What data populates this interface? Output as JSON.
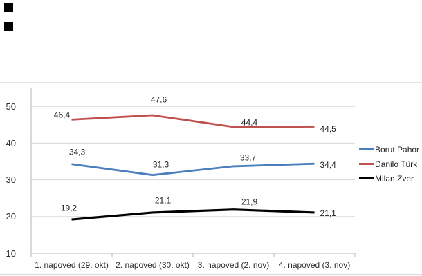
{
  "artifacts": {
    "broken_image_placeholder_count": 2
  },
  "chart_data": {
    "type": "line",
    "title": "",
    "xlabel": "",
    "ylabel": "",
    "categories": [
      "1. napoved (29. okt)",
      "2. napoved (30. okt)",
      "3. napoved (2. nov)",
      "4. napoved (3. nov)"
    ],
    "series": [
      {
        "name": "Borut Pahor",
        "color": "#4a7ebd",
        "values": [
          34.3,
          31.3,
          33.7,
          34.4
        ],
        "labels": [
          "34,3",
          "31,3",
          "33,7",
          "34,4"
        ]
      },
      {
        "name": "Danilo Türk",
        "color": "#c0504d",
        "values": [
          46.4,
          47.6,
          44.4,
          44.5
        ],
        "labels": [
          "46,4",
          "47,6",
          "44,4",
          "44,5"
        ]
      },
      {
        "name": "Milan Zver",
        "color": "#000000",
        "values": [
          19.2,
          21.1,
          21.9,
          21.1
        ],
        "labels": [
          "19,2",
          "21,1",
          "21,9",
          "21,1"
        ]
      }
    ],
    "yticks": [
      10,
      20,
      30,
      40,
      50
    ],
    "ylim": [
      10,
      55
    ],
    "grid": true,
    "legend_position": "right",
    "grid_color": "#d9d9d9",
    "axis_color": "#c3c3c3",
    "text_color": "#2e2e2e"
  }
}
